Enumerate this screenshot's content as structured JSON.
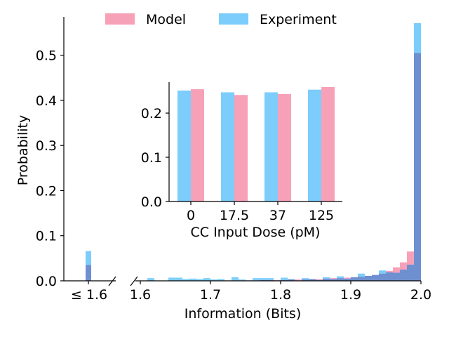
{
  "chart_data": [
    {
      "type": "bar",
      "role": "main-histogram",
      "xlabel": "Information (Bits)",
      "ylabel": "Probability",
      "ylim": [
        0,
        0.585
      ],
      "y_ticks": [
        "0.0",
        "0.1",
        "0.2",
        "0.3",
        "0.4",
        "0.5"
      ],
      "x_break_tick": "≤ 1.6",
      "x_ticks": [
        "1.6",
        "1.7",
        "1.8",
        "1.9",
        "2.0"
      ],
      "xlim": [
        1.593,
        2.0
      ],
      "bin_width": 0.01,
      "grid": false,
      "legend": "top",
      "colors": {
        "Model": "#f7a1b8",
        "Experiment": "#7ccdfb",
        "overlap": "#6e8fd0"
      },
      "low_bin": {
        "label": "≤ 1.6",
        "Model": 0.035,
        "Experiment": 0.066
      },
      "bin_left_edges": [
        1.6,
        1.61,
        1.62,
        1.63,
        1.64,
        1.65,
        1.66,
        1.67,
        1.68,
        1.69,
        1.7,
        1.71,
        1.72,
        1.73,
        1.74,
        1.75,
        1.76,
        1.77,
        1.78,
        1.79,
        1.8,
        1.81,
        1.82,
        1.83,
        1.84,
        1.85,
        1.86,
        1.87,
        1.88,
        1.89,
        1.9,
        1.91,
        1.92,
        1.93,
        1.94,
        1.95,
        1.96,
        1.97,
        1.98,
        1.99
      ],
      "series": [
        {
          "name": "Model",
          "values": [
            0.0,
            0.0,
            0.0,
            0.0,
            0.0,
            0.0,
            0.0,
            0.0,
            0.0,
            0.0,
            0.001,
            0.001,
            0.001,
            0.001,
            0.001,
            0.001,
            0.001,
            0.002,
            0.002,
            0.002,
            0.002,
            0.003,
            0.003,
            0.003,
            0.004,
            0.004,
            0.005,
            0.006,
            0.006,
            0.007,
            0.008,
            0.009,
            0.011,
            0.013,
            0.016,
            0.022,
            0.03,
            0.041,
            0.065,
            0.123
          ]
        },
        {
          "name": "Experiment",
          "values": [
            0.0,
            0.006,
            0.0,
            0.0,
            0.007,
            0.007,
            0.004,
            0.005,
            0.004,
            0.006,
            0.003,
            0.004,
            0.0,
            0.008,
            0.003,
            0.001,
            0.006,
            0.006,
            0.006,
            0.001,
            0.007,
            0.004,
            0.0,
            0.006,
            0.004,
            0.002,
            0.008,
            0.004,
            0.01,
            0.005,
            0.008,
            0.016,
            0.011,
            0.013,
            0.023,
            0.019,
            0.018,
            0.025,
            0.036,
            0.046
          ]
        }
      ],
      "last_bin": {
        "Model": 0.505,
        "Experiment": 0.571
      }
    },
    {
      "type": "bar",
      "role": "inset",
      "xlabel": "CC Input Dose (pM)",
      "ylabel": "",
      "ylim": [
        0,
        0.27
      ],
      "y_ticks": [
        "0.0",
        "0.1",
        "0.2"
      ],
      "categories": [
        "0",
        "17.5",
        "37",
        "125"
      ],
      "series": [
        {
          "name": "Experiment",
          "values": [
            0.251,
            0.247,
            0.247,
            0.253
          ]
        },
        {
          "name": "Model",
          "values": [
            0.254,
            0.241,
            0.243,
            0.259
          ]
        }
      ]
    }
  ]
}
